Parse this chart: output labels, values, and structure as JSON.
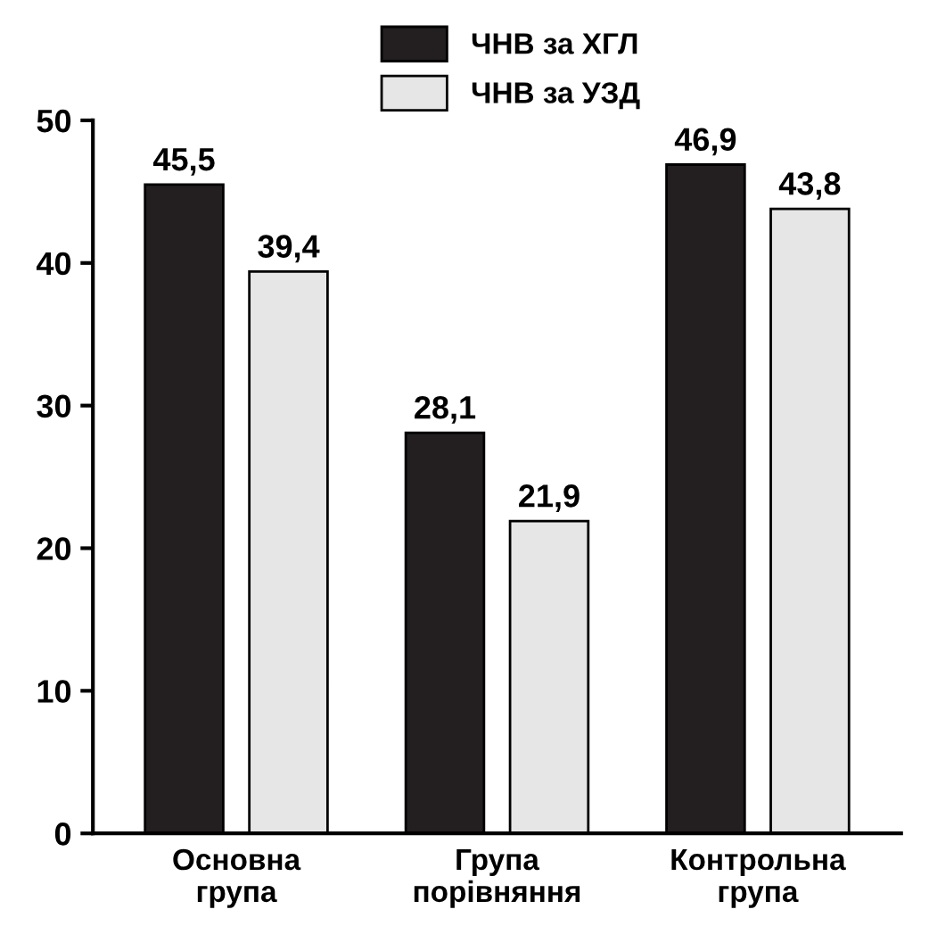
{
  "chart_data": {
    "type": "bar",
    "categories": [
      "Основна\nгрупа",
      "Група\nпорівняння",
      "Контрольна\nгрупа"
    ],
    "series": [
      {
        "name": "ЧНВ за ХГЛ",
        "color": "#231f20",
        "values": [
          45.5,
          28.1,
          46.9
        ],
        "value_labels": [
          "45,5",
          "28,1",
          "46,9"
        ]
      },
      {
        "name": "ЧНВ за УЗД",
        "color": "#e6e6e6",
        "values": [
          39.4,
          21.9,
          43.8
        ],
        "value_labels": [
          "39,4",
          "21,9",
          "43,8"
        ]
      }
    ],
    "ylim": [
      0,
      50
    ],
    "yticks": [
      0,
      10,
      20,
      30,
      40,
      50
    ],
    "grid": false,
    "legend": "top"
  }
}
